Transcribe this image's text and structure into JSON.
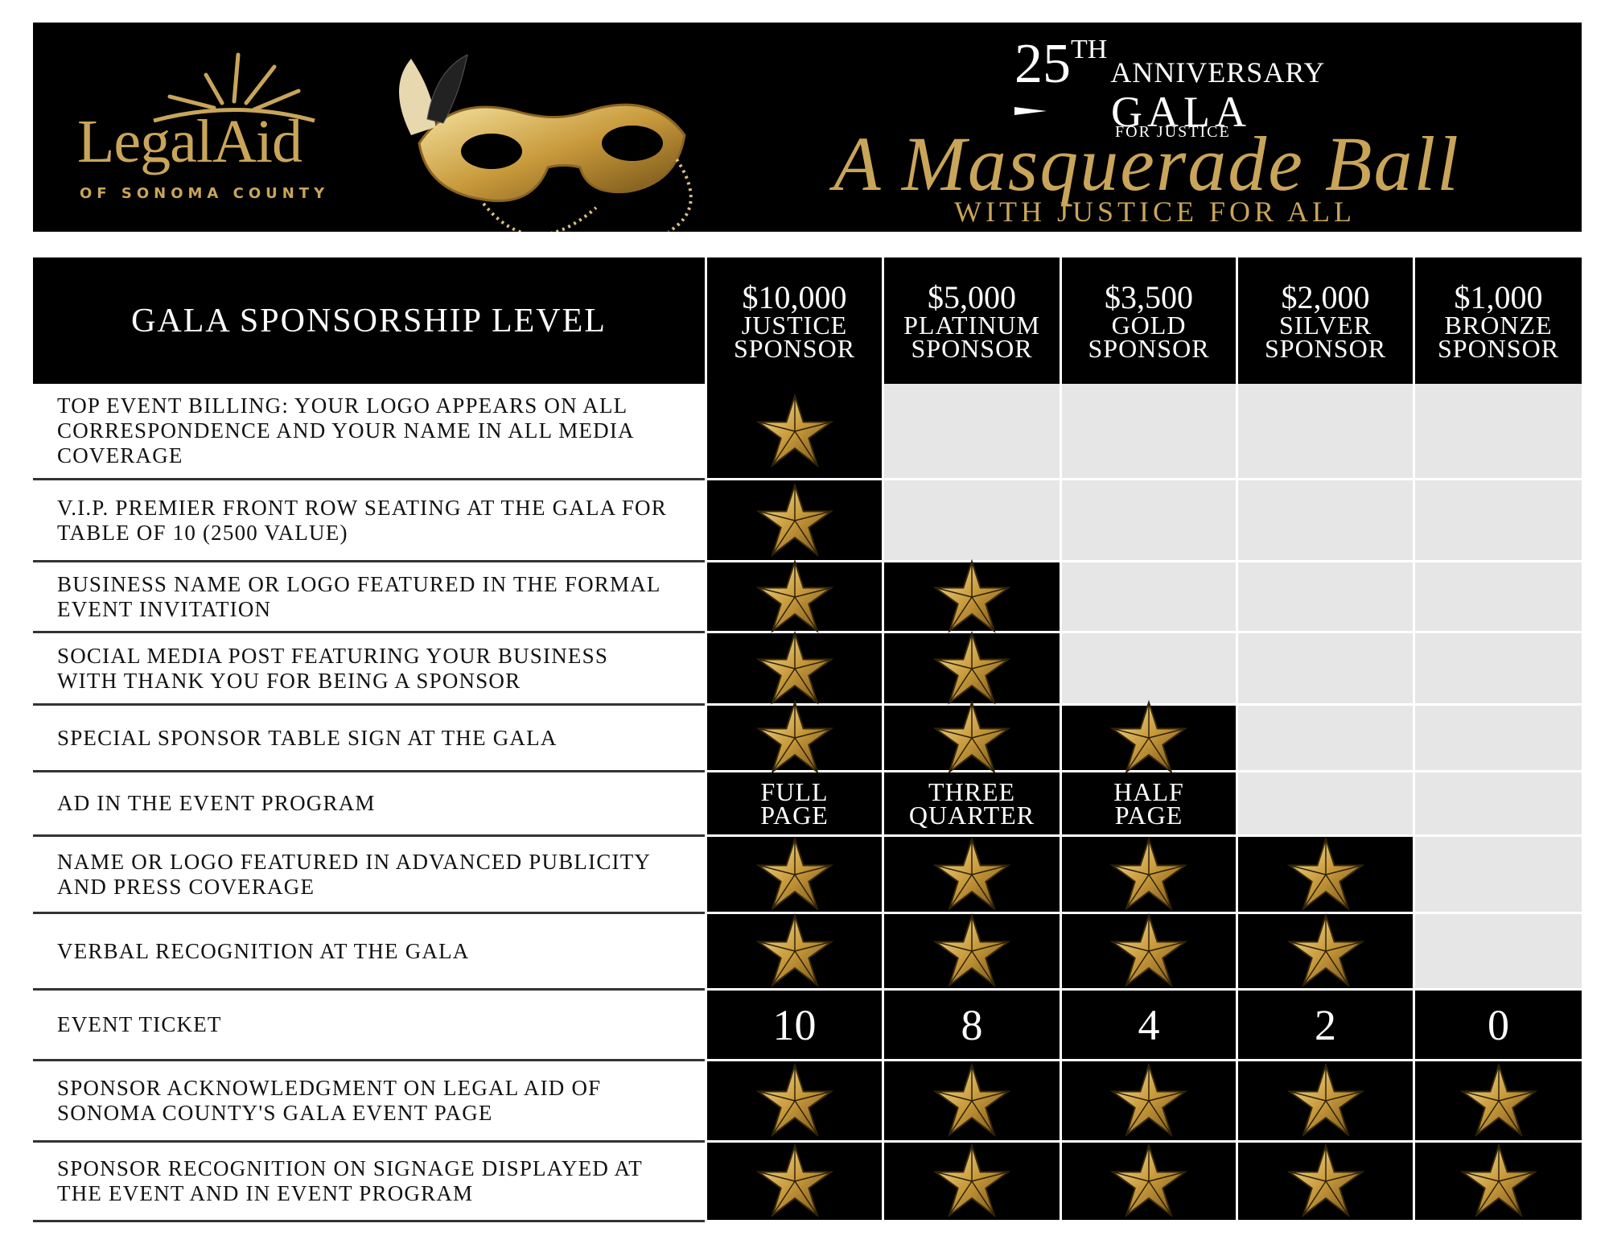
{
  "header": {
    "logo_name": "LegalAid",
    "logo_sub": "OF SONOMA COUNTY",
    "anniversary_number": "25",
    "anniversary_suffix": "TH",
    "anniversary_word": "ANNIVERSARY",
    "gala": "GALA",
    "for_justice": "FOR JUSTICE",
    "title": "A Masquerade Ball",
    "tagline": "WITH JUSTICE FOR ALL"
  },
  "table": {
    "header_label": "GALA SPONSORSHIP LEVEL",
    "levels": [
      {
        "amount": "$10,000",
        "name": "JUSTICE SPONSOR"
      },
      {
        "amount": "$5,000",
        "name": "PLATINUM SPONSOR"
      },
      {
        "amount": "$3,500",
        "name": "GOLD SPONSOR"
      },
      {
        "amount": "$2,000",
        "name": "SILVER SPONSOR"
      },
      {
        "amount": "$1,000",
        "name": "BRONZE SPONSOR"
      }
    ],
    "rows": [
      {
        "label": "TOP EVENT BILLING: YOUR LOGO APPEARS ON ALL CORRESPONDENCE AND YOUR NAME IN ALL MEDIA COVERAGE",
        "cells": [
          true,
          null,
          null,
          null,
          null
        ]
      },
      {
        "label": "V.I.P. PREMIER FRONT ROW SEATING AT THE GALA FOR TABLE OF 10 (2500 VALUE)",
        "cells": [
          true,
          null,
          null,
          null,
          null
        ]
      },
      {
        "label": "BUSINESS NAME OR LOGO FEATURED IN THE FORMAL EVENT INVITATION",
        "cells": [
          true,
          true,
          null,
          null,
          null
        ]
      },
      {
        "label": "SOCIAL MEDIA POST FEATURING YOUR BUSINESS WITH THANK YOU FOR BEING A SPONSOR",
        "cells": [
          true,
          true,
          null,
          null,
          null
        ]
      },
      {
        "label": "SPECIAL SPONSOR TABLE SIGN AT THE GALA",
        "cells": [
          true,
          true,
          true,
          null,
          null
        ]
      },
      {
        "label": "AD IN THE EVENT PROGRAM",
        "cells": [
          "FULL PAGE",
          "THREE QUARTER",
          "HALF PAGE",
          null,
          null
        ]
      },
      {
        "label": "NAME OR LOGO FEATURED IN ADVANCED PUBLICITY AND PRESS COVERAGE",
        "cells": [
          true,
          true,
          true,
          true,
          null
        ]
      },
      {
        "label": "VERBAL RECOGNITION AT THE GALA",
        "cells": [
          true,
          true,
          true,
          true,
          null
        ]
      },
      {
        "label": "EVENT TICKET",
        "cells": [
          10,
          8,
          4,
          2,
          0
        ]
      },
      {
        "label": "SPONSOR ACKNOWLEDGMENT ON LEGAL AID OF SONOMA COUNTY'S GALA EVENT PAGE",
        "cells": [
          true,
          true,
          true,
          true,
          true
        ]
      },
      {
        "label": "SPONSOR RECOGNITION ON SIGNAGE DISPLAYED AT THE EVENT AND IN EVENT PROGRAM",
        "cells": [
          true,
          true,
          true,
          true,
          true
        ]
      }
    ]
  }
}
